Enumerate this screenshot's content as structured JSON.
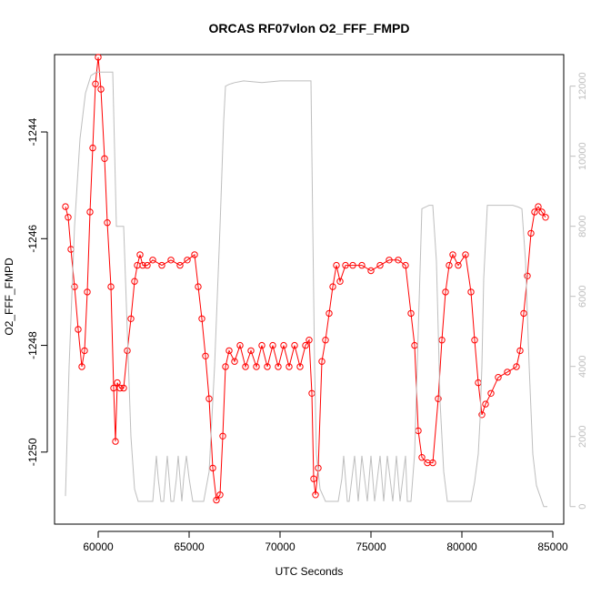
{
  "chart_data": {
    "type": "line",
    "title": "ORCAS RF07vlon O2_FFF_FMPD",
    "xlabel": "UTC Seconds",
    "ylabel": "O2_FFF_FMPD",
    "xlim": [
      57600,
      85600
    ],
    "ylim": [
      -1251.35,
      -1242.55
    ],
    "y2lim": [
      -500,
      12900
    ],
    "x_ticks": [
      60000,
      65000,
      70000,
      75000,
      80000,
      85000
    ],
    "y_ticks": [
      -1244,
      -1246,
      -1248,
      -1250
    ],
    "y2_ticks": [
      0,
      2000,
      4000,
      6000,
      8000,
      10000,
      12000
    ],
    "grid": false,
    "series": [
      {
        "axis": "left",
        "color": "#ff0000",
        "marker": "open-circle",
        "x": [
          58200,
          58350,
          58500,
          58700,
          58900,
          59100,
          59250,
          59400,
          59550,
          59700,
          59850,
          60000,
          60150,
          60350,
          60500,
          60700,
          60850,
          60950,
          61050,
          61200,
          61400,
          61600,
          61800,
          62000,
          62150,
          62300,
          62450,
          62700,
          63000,
          63500,
          64000,
          64500,
          64900,
          65300,
          65500,
          65700,
          65900,
          66100,
          66300,
          66500,
          66700,
          66850,
          67000,
          67200,
          67500,
          67800,
          68100,
          68400,
          68700,
          69000,
          69300,
          69600,
          69900,
          70200,
          70500,
          70800,
          71100,
          71400,
          71600,
          71750,
          71850,
          71950,
          72100,
          72300,
          72500,
          72700,
          72900,
          73100,
          73300,
          73600,
          74000,
          74500,
          75000,
          75500,
          76000,
          76500,
          76900,
          77200,
          77400,
          77600,
          77800,
          78100,
          78400,
          78700,
          78900,
          79100,
          79300,
          79500,
          79800,
          80200,
          80500,
          80700,
          80900,
          81100,
          81300,
          81600,
          82000,
          82500,
          83000,
          83200,
          83400,
          83600,
          83800,
          84000,
          84200,
          84400,
          84600
        ],
        "y": [
          -1245.4,
          -1245.6,
          -1246.2,
          -1246.9,
          -1247.7,
          -1248.4,
          -1248.1,
          -1247.0,
          -1245.5,
          -1244.3,
          -1243.1,
          -1242.6,
          -1243.2,
          -1244.5,
          -1245.7,
          -1246.9,
          -1248.8,
          -1249.8,
          -1248.7,
          -1248.8,
          -1248.8,
          -1248.1,
          -1247.5,
          -1246.8,
          -1246.5,
          -1246.3,
          -1246.5,
          -1246.5,
          -1246.4,
          -1246.5,
          -1246.4,
          -1246.5,
          -1246.4,
          -1246.3,
          -1246.9,
          -1247.5,
          -1248.2,
          -1249.0,
          -1250.3,
          -1250.9,
          -1250.8,
          -1249.7,
          -1248.4,
          -1248.1,
          -1248.3,
          -1248.0,
          -1248.4,
          -1248.1,
          -1248.4,
          -1248.0,
          -1248.4,
          -1248.0,
          -1248.4,
          -1248.0,
          -1248.4,
          -1248.0,
          -1248.4,
          -1248.0,
          -1247.9,
          -1248.9,
          -1250.5,
          -1250.8,
          -1250.3,
          -1248.3,
          -1247.9,
          -1247.4,
          -1246.9,
          -1246.5,
          -1246.8,
          -1246.5,
          -1246.5,
          -1246.5,
          -1246.6,
          -1246.5,
          -1246.4,
          -1246.4,
          -1246.5,
          -1247.4,
          -1248.0,
          -1249.6,
          -1250.1,
          -1250.2,
          -1250.2,
          -1249.0,
          -1247.9,
          -1247.0,
          -1246.5,
          -1246.3,
          -1246.5,
          -1246.3,
          -1247.0,
          -1247.9,
          -1248.7,
          -1249.3,
          -1249.1,
          -1248.9,
          -1248.6,
          -1248.5,
          -1248.4,
          -1248.1,
          -1247.4,
          -1246.7,
          -1245.9,
          -1245.5,
          -1245.4,
          -1245.5,
          -1245.6
        ]
      },
      {
        "axis": "right",
        "color": "#bebebe",
        "marker": "none",
        "x": [
          58200,
          58400,
          58700,
          59000,
          59300,
          59600,
          59900,
          60000,
          60500,
          60800,
          61000,
          61200,
          61400,
          61600,
          61800,
          62000,
          62200,
          62400,
          62600,
          62800,
          63000,
          63100,
          63200,
          63300,
          63450,
          63600,
          63700,
          63800,
          63900,
          64000,
          64150,
          64300,
          64400,
          64500,
          64600,
          64700,
          64850,
          65000,
          65200,
          65500,
          65800,
          66100,
          66400,
          66700,
          66900,
          67000,
          67200,
          67500,
          68000,
          69000,
          70000,
          71000,
          71700,
          71800,
          71900,
          72000,
          72200,
          72500,
          72800,
          73000,
          73200,
          73400,
          73500,
          73600,
          73700,
          73800,
          73950,
          74100,
          74200,
          74300,
          74400,
          74500,
          74650,
          74800,
          74900,
          75000,
          75100,
          75200,
          75350,
          75500,
          75600,
          75700,
          75800,
          75900,
          76050,
          76200,
          76300,
          76400,
          76500,
          76600,
          76750,
          76900,
          77000,
          77200,
          77400,
          77600,
          77800,
          78200,
          78400,
          78600,
          78800,
          79000,
          79200,
          79400,
          79600,
          79900,
          80200,
          80500,
          80700,
          80900,
          81000,
          81100,
          81200,
          81400,
          81800,
          82300,
          82800,
          83100,
          83300,
          83500,
          83700,
          83900,
          84100,
          84300,
          84500,
          84700
        ],
        "y": [
          300,
          4000,
          8000,
          10500,
          11800,
          12300,
          12400,
          12400,
          12400,
          12400,
          8000,
          8000,
          8000,
          5000,
          2000,
          500,
          150,
          150,
          150,
          150,
          150,
          800,
          1450,
          800,
          150,
          150,
          800,
          1450,
          800,
          150,
          150,
          800,
          1450,
          800,
          150,
          800,
          1450,
          800,
          150,
          150,
          150,
          1000,
          4000,
          8000,
          11000,
          12000,
          12050,
          12100,
          12150,
          12100,
          12150,
          12150,
          12150,
          8000,
          4000,
          1500,
          500,
          150,
          150,
          150,
          150,
          800,
          1450,
          800,
          150,
          150,
          800,
          1450,
          800,
          150,
          800,
          1450,
          800,
          150,
          800,
          1450,
          800,
          150,
          800,
          1450,
          800,
          150,
          800,
          1450,
          800,
          150,
          800,
          1450,
          800,
          150,
          800,
          1450,
          150,
          150,
          1500,
          5000,
          8500,
          8600,
          8600,
          7000,
          3000,
          1000,
          150,
          150,
          150,
          150,
          150,
          150,
          700,
          1500,
          2500,
          4000,
          6500,
          8600,
          8600,
          8600,
          8600,
          8550,
          8500,
          7000,
          4000,
          1500,
          600,
          300,
          0,
          0
        ]
      }
    ]
  }
}
